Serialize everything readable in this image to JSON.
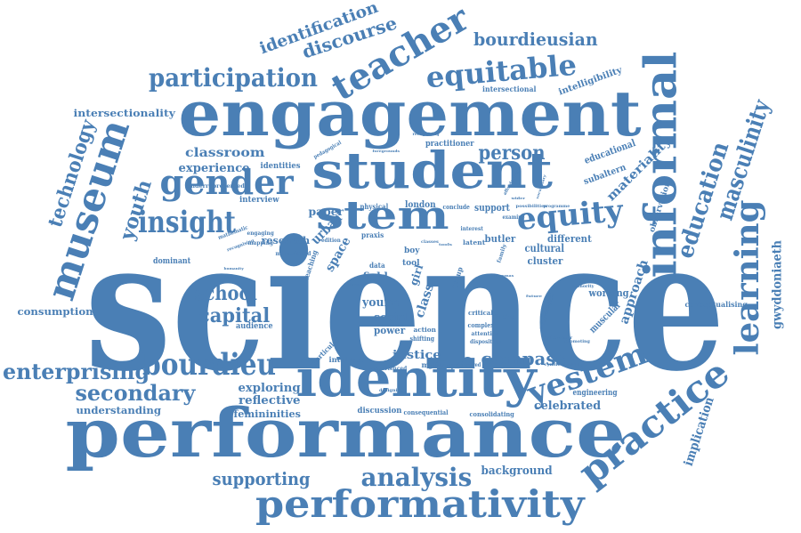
{
  "accent_color": "#4a7fb5",
  "words": [
    {
      "id": "w-science",
      "text": "science"
    },
    {
      "id": "w-engagement",
      "text": "engagement"
    },
    {
      "id": "w-performance",
      "text": "performance"
    },
    {
      "id": "w-identity",
      "text": "identity"
    },
    {
      "id": "w-student",
      "text": "student"
    },
    {
      "id": "w-informal",
      "text": "informal"
    },
    {
      "id": "w-performativity",
      "text": "performativity"
    },
    {
      "id": "w-museum",
      "text": "museum"
    },
    {
      "id": "w-teacher",
      "text": "teacher"
    },
    {
      "id": "w-stem",
      "text": "stem"
    },
    {
      "id": "w-practice",
      "text": "practice"
    },
    {
      "id": "w-gender",
      "text": "gender"
    },
    {
      "id": "w-learning",
      "text": "learning"
    },
    {
      "id": "w-equitable",
      "text": "equitable"
    },
    {
      "id": "w-participation",
      "text": "participation"
    },
    {
      "id": "w-bourdieu",
      "text": "bourdieu"
    },
    {
      "id": "w-insight",
      "text": "insight"
    },
    {
      "id": "w-equity",
      "text": "equity"
    },
    {
      "id": "w-yestem",
      "text": "yestem"
    },
    {
      "id": "w-education",
      "text": "education"
    },
    {
      "id": "w-masculinity",
      "text": "masculinity"
    },
    {
      "id": "w-analysis",
      "text": "analysis"
    },
    {
      "id": "w-technology",
      "text": "technology"
    },
    {
      "id": "w-enterprising",
      "text": "enterprising"
    },
    {
      "id": "w-secondary",
      "text": "secondary"
    },
    {
      "id": "w-bourdieusian",
      "text": "bourdieusian"
    },
    {
      "id": "w-discourse",
      "text": "discourse"
    },
    {
      "id": "w-identification",
      "text": "identification"
    },
    {
      "id": "w-youth",
      "text": "youth"
    },
    {
      "id": "w-capital",
      "text": "capital"
    },
    {
      "id": "w-school",
      "text": "school"
    },
    {
      "id": "w-person",
      "text": "person"
    },
    {
      "id": "w-compass",
      "text": "compass"
    },
    {
      "id": "w-supporting",
      "text": "supporting"
    },
    {
      "id": "w-classroom",
      "text": "classroom"
    },
    {
      "id": "w-experience",
      "text": "experience"
    },
    {
      "id": "w-materiality",
      "text": "materiality"
    },
    {
      "id": "w-approach",
      "text": "approach"
    },
    {
      "id": "w-implication",
      "text": "implication"
    },
    {
      "id": "w-gwyddoniaeth",
      "text": "gwyddoniaeth"
    },
    {
      "id": "w-intersectionality",
      "text": "intersectionality"
    },
    {
      "id": "w-consumption",
      "text": "consumption"
    },
    {
      "id": "w-exploring",
      "text": "exploring"
    },
    {
      "id": "w-reflective",
      "text": "reflective"
    },
    {
      "id": "w-femininities",
      "text": "femininities"
    },
    {
      "id": "w-understanding",
      "text": "understanding"
    },
    {
      "id": "w-celebrated",
      "text": "celebrated"
    },
    {
      "id": "w-background",
      "text": "background"
    },
    {
      "id": "w-justice",
      "text": "justice"
    },
    {
      "id": "w-young",
      "text": "young"
    },
    {
      "id": "w-social",
      "text": "social"
    },
    {
      "id": "w-power",
      "text": "power"
    },
    {
      "id": "w-urban",
      "text": "urban"
    },
    {
      "id": "w-space",
      "text": "space"
    },
    {
      "id": "w-class",
      "text": "class"
    },
    {
      "id": "w-paper",
      "text": "paper"
    },
    {
      "id": "w-research",
      "text": "research"
    },
    {
      "id": "w-field",
      "text": "field"
    },
    {
      "id": "w-girl",
      "text": "girl"
    },
    {
      "id": "w-cultural",
      "text": "cultural"
    },
    {
      "id": "w-cluster",
      "text": "cluster"
    },
    {
      "id": "w-different",
      "text": "different"
    },
    {
      "id": "w-support",
      "text": "support"
    },
    {
      "id": "w-london",
      "text": "london"
    },
    {
      "id": "w-butler",
      "text": "butler"
    },
    {
      "id": "w-working",
      "text": "working"
    },
    {
      "id": "w-muscular",
      "text": "muscular"
    },
    {
      "id": "w-intelligibility",
      "text": "intelligibility"
    },
    {
      "id": "w-educational",
      "text": "educational"
    },
    {
      "id": "w-subaltern",
      "text": "subaltern"
    },
    {
      "id": "w-observation",
      "text": "observation"
    },
    {
      "id": "w-intersectional",
      "text": "intersectional"
    },
    {
      "id": "w-practitioner",
      "text": "practitioner"
    },
    {
      "id": "w-audience",
      "text": "audience"
    },
    {
      "id": "w-dominant",
      "text": "dominant"
    },
    {
      "id": "w-identities",
      "text": "identities"
    },
    {
      "id": "w-interview",
      "text": "interview"
    },
    {
      "id": "w-engineering",
      "text": "engineering"
    },
    {
      "id": "w-conceptualising",
      "text": "conceptualising"
    },
    {
      "id": "w-discussion",
      "text": "discussion"
    },
    {
      "id": "w-consequential",
      "text": "consequential"
    },
    {
      "id": "w-consolidating",
      "text": "consolidating"
    },
    {
      "id": "w-intellect",
      "text": "intellect"
    },
    {
      "id": "w-myfyrwyr",
      "text": "myfyrwyr"
    },
    {
      "id": "w-experienced",
      "text": "experienced"
    },
    {
      "id": "w-particular",
      "text": "particular"
    },
    {
      "id": "w-underrepresented",
      "text": "underrepresented"
    },
    {
      "id": "w-physical",
      "text": "physical"
    },
    {
      "id": "w-boy",
      "text": "boy"
    },
    {
      "id": "w-tool",
      "text": "tool"
    },
    {
      "id": "w-action",
      "text": "action"
    },
    {
      "id": "w-latent",
      "text": "latent"
    },
    {
      "id": "w-engaging",
      "text": "engaging"
    },
    {
      "id": "w-mapping",
      "text": "mapping"
    },
    {
      "id": "w-minoritized",
      "text": "minoritized"
    },
    {
      "id": "w-shifting",
      "text": "shifting"
    },
    {
      "id": "w-teaching",
      "text": "teaching"
    },
    {
      "id": "w-complex",
      "text": "complex"
    },
    {
      "id": "w-critical",
      "text": "critical"
    },
    {
      "id": "w-finding",
      "text": "finding"
    },
    {
      "id": "w-disposition",
      "text": "disposition"
    },
    {
      "id": "w-attention",
      "text": "attention"
    },
    {
      "id": "w-data",
      "text": "data"
    },
    {
      "id": "w-praxis",
      "text": "praxis"
    },
    {
      "id": "w-edition",
      "text": "edition"
    },
    {
      "id": "w-conclude",
      "text": "conclude"
    },
    {
      "id": "w-examine",
      "text": "examine"
    },
    {
      "id": "w-interest",
      "text": "interest"
    },
    {
      "id": "w-possibilities",
      "text": "possibilities"
    },
    {
      "id": "w-programme",
      "text": "programme"
    },
    {
      "id": "w-recognizing",
      "text": "recognizing"
    },
    {
      "id": "w-pedagogical",
      "text": "pedagogical"
    },
    {
      "id": "w-group",
      "text": "group"
    },
    {
      "id": "w-family",
      "text": "family"
    },
    {
      "id": "w-mathematic",
      "text": "mathematic"
    },
    {
      "id": "w-recognising",
      "text": "recognising"
    },
    {
      "id": "w-cymdeithasol",
      "text": "cymdeithasol"
    },
    {
      "id": "w-cyflawnder",
      "text": "cyflawnder"
    },
    {
      "id": "w-promoting",
      "text": "promoting"
    },
    {
      "id": "w-designing",
      "text": "designing"
    },
    {
      "id": "w-underserved",
      "text": "underserved"
    },
    {
      "id": "w-methodological",
      "text": "methodological"
    },
    {
      "id": "w-embracing",
      "text": "embracing"
    },
    {
      "id": "w-authority",
      "text": "authority"
    },
    {
      "id": "w-affordances",
      "text": "affordances"
    },
    {
      "id": "w-foregrounds",
      "text": "foregrounds"
    },
    {
      "id": "w-classes",
      "text": "classes"
    },
    {
      "id": "w-lerem",
      "text": "lerem"
    },
    {
      "id": "w-dilemmas",
      "text": "dilemmas"
    },
    {
      "id": "w-tools",
      "text": "tools"
    },
    {
      "id": "w-vocabulary",
      "text": "vocabulary"
    },
    {
      "id": "w-future",
      "text": "future"
    },
    {
      "id": "w-humanity",
      "text": "humanity"
    },
    {
      "id": "w-industry",
      "text": "industry"
    },
    {
      "id": "w-wider",
      "text": "wider"
    }
  ]
}
